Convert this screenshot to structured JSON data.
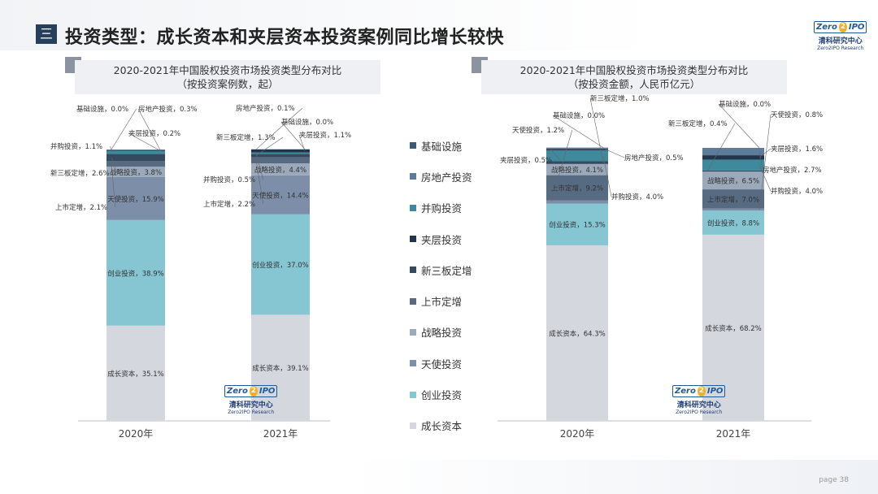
{
  "page": {
    "title": "投资类型：成长资本和夹层资本投资案例同比增长较快",
    "menu_icon": "三",
    "page_number": "page  38",
    "logo": {
      "badge_left": "Zero",
      "badge_mid": "2",
      "badge_right": "IPO",
      "cn": "清科研究中心",
      "en": "Zero2IPO Research"
    }
  },
  "legend": {
    "items": [
      {
        "label": "基础设施",
        "color": "#3b5a78"
      },
      {
        "label": "房地产投资",
        "color": "#5d7c9a"
      },
      {
        "label": "并购投资",
        "color": "#3e8a9c"
      },
      {
        "label": "夹层投资",
        "color": "#23354a"
      },
      {
        "label": "新三板定增",
        "color": "#35495f"
      },
      {
        "label": "上市定增",
        "color": "#566b82"
      },
      {
        "label": "战略投资",
        "color": "#9ba9ba"
      },
      {
        "label": "天使投资",
        "color": "#7d8fa8"
      },
      {
        "label": "创业投资",
        "color": "#86c6d3"
      },
      {
        "label": "成长资本",
        "color": "#d5d7df"
      }
    ]
  },
  "chart_data": [
    {
      "type": "bar",
      "stacked": true,
      "title": "2020-2021年中国股权投资市场投资类型分布对比",
      "subtitle": "（按投资案例数，起）",
      "categories": [
        "2020年",
        "2021年"
      ],
      "series": [
        {
          "name": "成长资本",
          "values": [
            35.1,
            39.1
          ],
          "labels": [
            "成长资本，35.1%",
            "成长资本，39.1%"
          ]
        },
        {
          "name": "创业投资",
          "values": [
            38.9,
            37.0
          ],
          "labels": [
            "创业投资，38.9%",
            "创业投资，37.0%"
          ]
        },
        {
          "name": "天使投资",
          "values": [
            15.9,
            14.4
          ],
          "labels": [
            "天使投资，15.9%",
            "天使投资，14.4%"
          ]
        },
        {
          "name": "战略投资",
          "values": [
            3.8,
            4.4
          ],
          "labels": [
            "战略投资，3.8%",
            "战略投资，4.4%"
          ]
        },
        {
          "name": "上市定增",
          "values": [
            2.1,
            2.2
          ],
          "labels": [
            "上市定增，2.1%",
            "上市定增，2.2%"
          ]
        },
        {
          "name": "新三板定增",
          "values": [
            2.6,
            1.3
          ],
          "labels": [
            "新三板定增，2.6%",
            "新三板定增，1.3%"
          ]
        },
        {
          "name": "并购投资",
          "values": [
            1.1,
            0.5
          ],
          "labels": [
            "并购投资，1.1%",
            "并购投资，0.5%"
          ]
        },
        {
          "name": "夹层投资",
          "values": [
            0.2,
            1.1
          ],
          "labels": [
            "夹层投资，0.2%",
            "夹层投资，1.1%"
          ]
        },
        {
          "name": "房地产投资",
          "values": [
            0.3,
            0.1
          ],
          "labels": [
            "房地产投资，0.3%",
            "房地产投资，0.1%"
          ]
        },
        {
          "name": "基础设施",
          "values": [
            0.0,
            0.0
          ],
          "labels": [
            "基础设施，0.0%",
            "基础设施，0.0%"
          ]
        }
      ],
      "ylim": [
        0,
        100
      ]
    },
    {
      "type": "bar",
      "stacked": true,
      "title": "2020-2021年中国股权投资市场投资类型分布对比",
      "subtitle": "（按投资金额，人民币亿元）",
      "categories": [
        "2020年",
        "2021年"
      ],
      "series": [
        {
          "name": "成长资本",
          "values": [
            64.3,
            68.2
          ],
          "labels": [
            "成长资本，64.3%",
            "成长资本，68.2%"
          ]
        },
        {
          "name": "创业投资",
          "values": [
            15.3,
            8.8
          ],
          "labels": [
            "创业投资，15.3%",
            "创业投资，8.8%"
          ]
        },
        {
          "name": "天使投资",
          "values": [
            1.2,
            0.8
          ],
          "labels": [
            "天使投资，1.2%",
            "天使投资，0.8%"
          ]
        },
        {
          "name": "上市定增",
          "values": [
            9.2,
            7.0
          ],
          "labels": [
            "上市定增，9.2%",
            "上市定增，7.0%"
          ]
        },
        {
          "name": "战略投资",
          "values": [
            4.1,
            6.5
          ],
          "labels": [
            "战略投资，4.1%",
            "战略投资，6.5%"
          ]
        },
        {
          "name": "新三板定增",
          "values": [
            1.0,
            0.4
          ],
          "labels": [
            "新三板定增，1.0%",
            "新三板定增，0.4%"
          ]
        },
        {
          "name": "并购投资",
          "values": [
            4.0,
            4.0
          ],
          "labels": [
            "并购投资，4.0%",
            "并购投资，4.0%"
          ]
        },
        {
          "name": "夹层投资",
          "values": [
            0.5,
            1.6
          ],
          "labels": [
            "夹层投资，0.5%",
            "夹层投资，1.6%"
          ]
        },
        {
          "name": "房地产投资",
          "values": [
            0.5,
            2.7
          ],
          "labels": [
            "房地产投资，0.5%",
            "房地产投资，2.7%"
          ]
        },
        {
          "name": "基础设施",
          "values": [
            0.0,
            0.0
          ],
          "labels": [
            "基础设施，0.0%",
            "基础设施，0.0%"
          ]
        }
      ],
      "ylim": [
        0,
        100
      ]
    }
  ]
}
